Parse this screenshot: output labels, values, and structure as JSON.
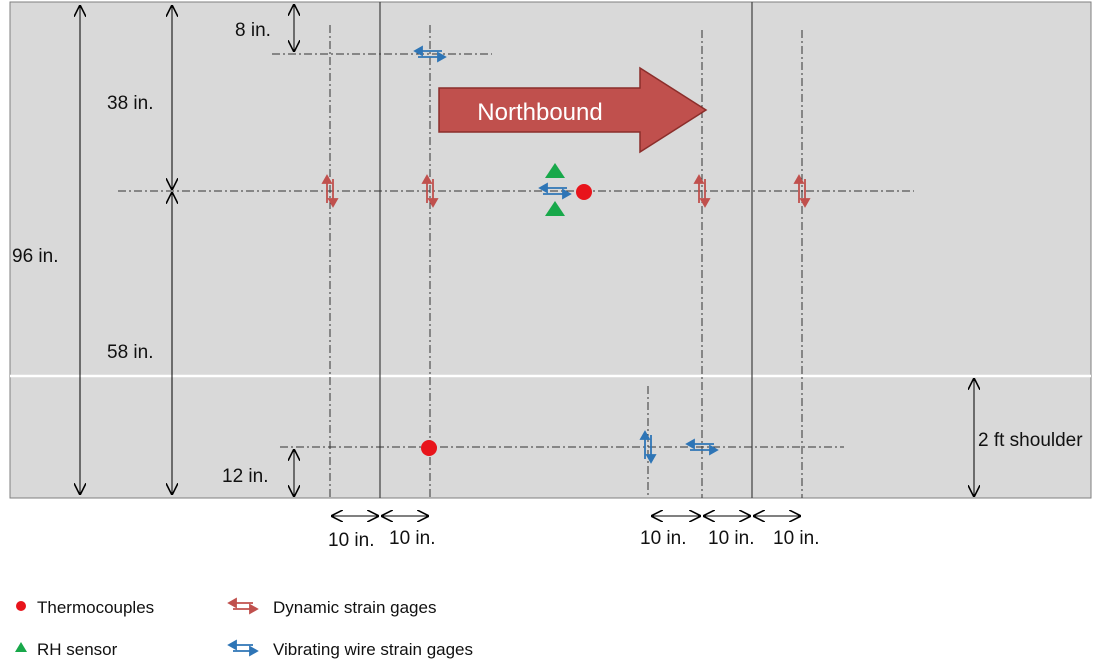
{
  "direction_label": "Northbound",
  "dimensions": {
    "top_offset": "8 in.",
    "upper_span": "38 in.",
    "slab_width": "96 in.",
    "lower_span": "58 in.",
    "bottom_offset": "12 in.",
    "shoulder": "2 ft shoulder"
  },
  "spacing_labels": [
    "10 in.",
    "10 in.",
    "10 in.",
    "10 in.",
    "10 in."
  ],
  "legend": [
    {
      "label": "Thermocouples",
      "symbol": "circle",
      "color": "#e8141b"
    },
    {
      "label": "RH sensor",
      "symbol": "triangle",
      "color": "#18a84a"
    },
    {
      "label": "Dynamic strain gages",
      "symbol": "double-arrow",
      "color": "#c0504d"
    },
    {
      "label": "Vibrating wire strain gages",
      "symbol": "double-arrow",
      "color": "#2e75b6"
    }
  ],
  "colors": {
    "pavement": "#d9d9d9",
    "arrow_fill": "#c0504d",
    "dynamic_gage": "#c0504d",
    "vibrating_wire_gage": "#2e75b6",
    "thermocouple": "#e8141b",
    "rh_sensor": "#18a84a"
  }
}
